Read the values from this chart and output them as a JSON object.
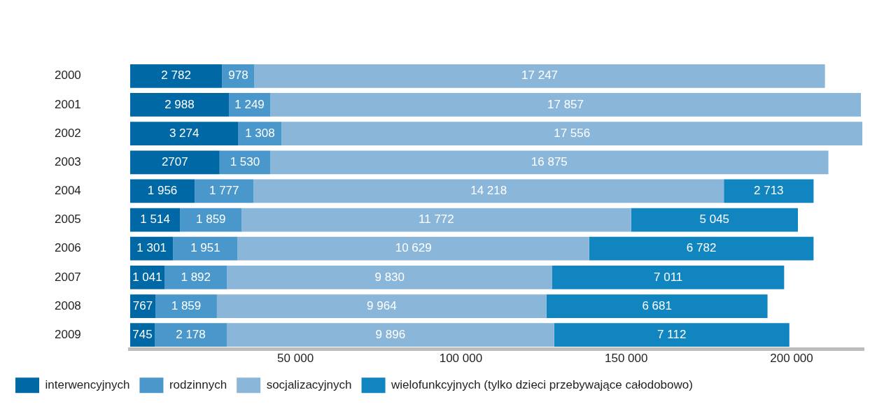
{
  "chart_data": {
    "type": "bar",
    "orientation": "horizontal",
    "stacked": true,
    "categories": [
      "2000",
      "2001",
      "2002",
      "2003",
      "2004",
      "2005",
      "2006",
      "2007",
      "2008",
      "2009"
    ],
    "series": [
      {
        "name": "interwencyjnych",
        "color": "#0068a5",
        "values": [
          2782,
          2988,
          3274,
          2707,
          1956,
          1514,
          1301,
          1041,
          767,
          745
        ],
        "value_labels": [
          "2 782",
          "2 988",
          "3 274",
          "2707",
          "1 956",
          "1 514",
          "1 301",
          "1 041",
          "767",
          "745"
        ]
      },
      {
        "name": "rodzinnych",
        "color": "#4a98cb",
        "values": [
          978,
          1249,
          1308,
          1530,
          1777,
          1859,
          1951,
          1892,
          1859,
          2178
        ],
        "value_labels": [
          "978",
          "1 249",
          "1 308",
          "1 530",
          "1 777",
          "1 859",
          "1 951",
          "1 892",
          "1 859",
          "2 178"
        ]
      },
      {
        "name": "socjalizacyjnych",
        "color": "#8ab6da",
        "values": [
          17247,
          17857,
          17556,
          16875,
          14218,
          11772,
          10629,
          9830,
          9964,
          9896
        ],
        "value_labels": [
          "17 247",
          "17 857",
          "17 556",
          "16 875",
          "14 218",
          "11 772",
          "10 629",
          "9 830",
          "9 964",
          "9 896"
        ]
      },
      {
        "name": "wielofunkcyjnych (tylko dzieci przebywające całodobowo)",
        "color": "#1085bf",
        "values": [
          null,
          null,
          null,
          null,
          2713,
          5045,
          6782,
          7011,
          6681,
          7112
        ],
        "value_labels": [
          null,
          null,
          null,
          null,
          "2 713",
          "5 045",
          "6 782",
          "7 011",
          "6 681",
          "7 112"
        ]
      }
    ],
    "xlim": [
      0,
      22200
    ],
    "x2lim": [
      0,
      222000
    ],
    "x2ticks": [
      {
        "value": 50000,
        "label": "50 000"
      },
      {
        "value": 100000,
        "label": "100 000"
      },
      {
        "value": 150000,
        "label": "150 000"
      },
      {
        "value": 200000,
        "label": "200 000"
      }
    ],
    "grid": false,
    "legend": "bottom"
  }
}
